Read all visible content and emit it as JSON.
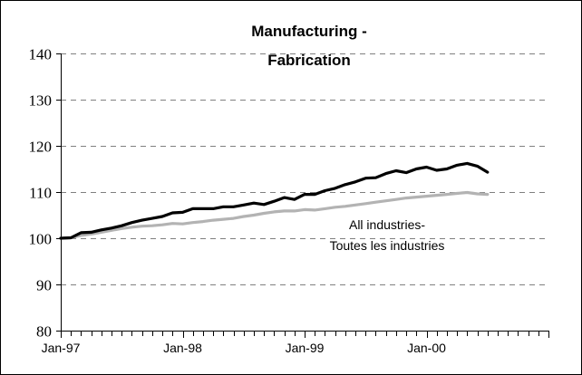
{
  "chart_data": {
    "type": "line",
    "title_lines": [
      "Manufacturing -",
      "Fabrication"
    ],
    "xlabel": "",
    "ylabel": "",
    "ylim": [
      80,
      140
    ],
    "yticks": [
      80,
      90,
      100,
      110,
      120,
      130,
      140
    ],
    "xtick_labels": [
      "Jan-97",
      "Jan-98",
      "Jan-99",
      "Jan-00"
    ],
    "grid": "horizontal dashed",
    "x_months": [
      "Jan-97",
      "Feb-97",
      "Mar-97",
      "Apr-97",
      "May-97",
      "Jun-97",
      "Jul-97",
      "Aug-97",
      "Sep-97",
      "Oct-97",
      "Nov-97",
      "Dec-97",
      "Jan-98",
      "Feb-98",
      "Mar-98",
      "Apr-98",
      "May-98",
      "Jun-98",
      "Jul-98",
      "Aug-98",
      "Sep-98",
      "Oct-98",
      "Nov-98",
      "Dec-98",
      "Jan-99",
      "Feb-99",
      "Mar-99",
      "Apr-99",
      "May-99",
      "Jun-99",
      "Jul-99",
      "Aug-99",
      "Sep-99",
      "Oct-99",
      "Nov-99",
      "Dec-99",
      "Jan-00",
      "Feb-00",
      "Mar-00",
      "Apr-00",
      "May-00",
      "Jun-00",
      "Jul-00"
    ],
    "series": [
      {
        "key": "manufacturing",
        "color": "#000000",
        "values": [
          100.0,
          100.1,
          101.2,
          101.3,
          101.8,
          102.2,
          102.7,
          103.4,
          103.9,
          104.3,
          104.7,
          105.5,
          105.6,
          106.4,
          106.4,
          106.4,
          106.8,
          106.8,
          107.2,
          107.6,
          107.3,
          108.0,
          108.8,
          108.4,
          109.5,
          109.5,
          110.3,
          110.8,
          111.6,
          112.2,
          113.0,
          113.1,
          114.0,
          114.6,
          114.2,
          115.0,
          115.4,
          114.7,
          115.0,
          115.8,
          116.2,
          115.6,
          114.3
        ]
      },
      {
        "key": "all_industries",
        "color": "#b3b3b3",
        "label_lines": [
          "All industries-",
          "Toutes les industries"
        ],
        "values": [
          100.0,
          100.1,
          100.6,
          100.9,
          101.3,
          101.7,
          102.1,
          102.4,
          102.6,
          102.7,
          102.9,
          103.2,
          103.1,
          103.4,
          103.6,
          103.9,
          104.1,
          104.3,
          104.7,
          105.0,
          105.4,
          105.7,
          105.9,
          105.9,
          106.2,
          106.1,
          106.4,
          106.7,
          106.9,
          107.2,
          107.5,
          107.8,
          108.1,
          108.4,
          108.7,
          108.9,
          109.1,
          109.3,
          109.5,
          109.7,
          109.9,
          109.6,
          109.5
        ]
      }
    ]
  }
}
